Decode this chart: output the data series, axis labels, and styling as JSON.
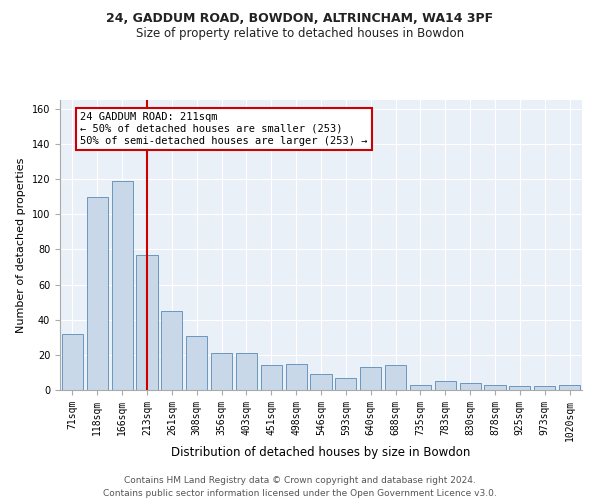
{
  "title1": "24, GADDUM ROAD, BOWDON, ALTRINCHAM, WA14 3PF",
  "title2": "Size of property relative to detached houses in Bowdon",
  "xlabel": "Distribution of detached houses by size in Bowdon",
  "ylabel": "Number of detached properties",
  "categories": [
    "71sqm",
    "118sqm",
    "166sqm",
    "213sqm",
    "261sqm",
    "308sqm",
    "356sqm",
    "403sqm",
    "451sqm",
    "498sqm",
    "546sqm",
    "593sqm",
    "640sqm",
    "688sqm",
    "735sqm",
    "783sqm",
    "830sqm",
    "878sqm",
    "925sqm",
    "973sqm",
    "1020sqm"
  ],
  "values": [
    32,
    110,
    119,
    77,
    45,
    31,
    21,
    21,
    14,
    15,
    9,
    7,
    13,
    14,
    3,
    5,
    4,
    3,
    2,
    2,
    3
  ],
  "bar_color": "#c8d8e8",
  "bar_edge_color": "#5a8ab5",
  "vline_x_idx": 3,
  "vline_color": "#cc0000",
  "annotation_text": "24 GADDUM ROAD: 211sqm\n← 50% of detached houses are smaller (253)\n50% of semi-detached houses are larger (253) →",
  "annotation_box_color": "#ffffff",
  "annotation_box_edge_color": "#cc0000",
  "ylim": [
    0,
    165
  ],
  "yticks": [
    0,
    20,
    40,
    60,
    80,
    100,
    120,
    140,
    160
  ],
  "bg_color": "#eaf0f8",
  "footer": "Contains HM Land Registry data © Crown copyright and database right 2024.\nContains public sector information licensed under the Open Government Licence v3.0.",
  "title1_fontsize": 9,
  "title2_fontsize": 8.5,
  "xlabel_fontsize": 8.5,
  "ylabel_fontsize": 8,
  "tick_fontsize": 7,
  "footer_fontsize": 6.5,
  "annot_fontsize": 7.5
}
